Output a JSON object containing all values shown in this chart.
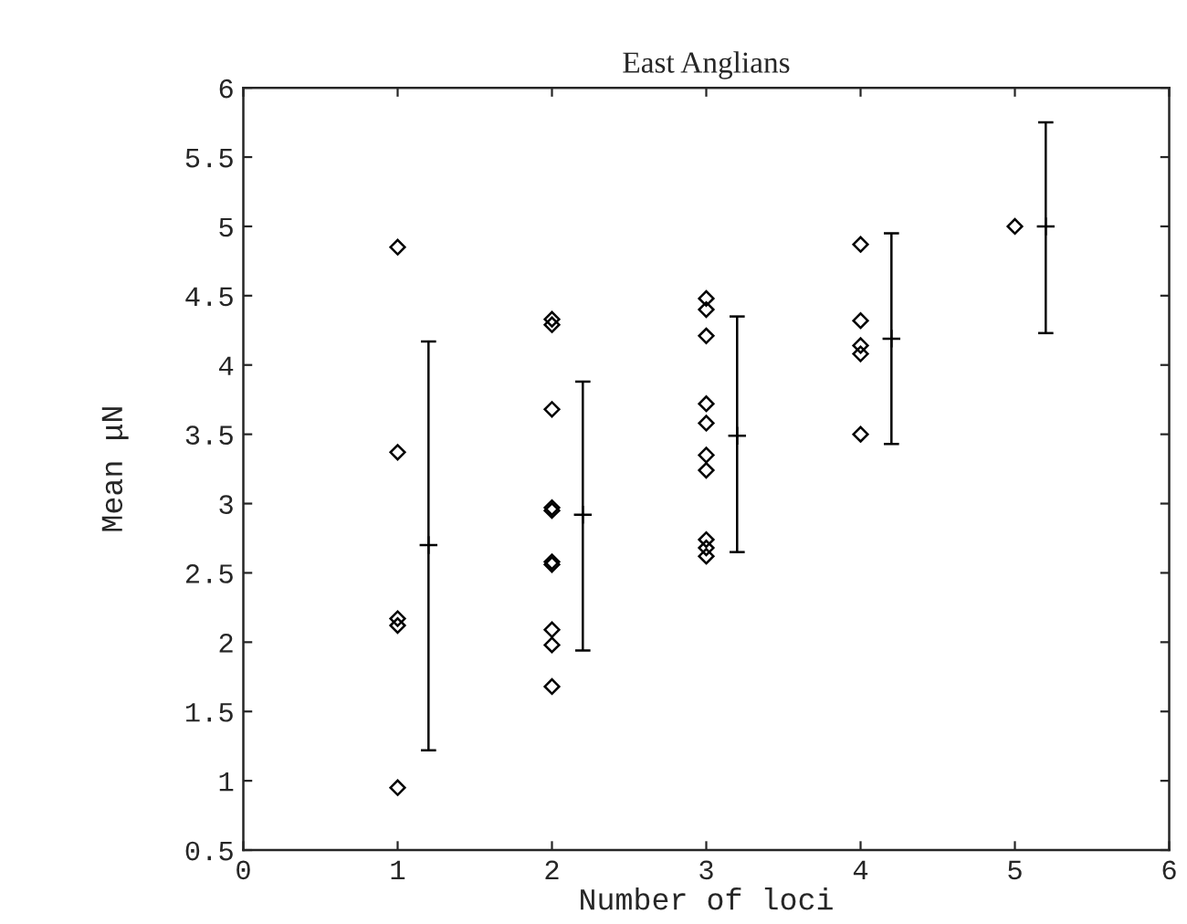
{
  "chart_data": {
    "type": "scatter",
    "title": "East Anglians",
    "xlabel": "Number of loci",
    "ylabel": "Mean μN",
    "xlim": [
      0,
      6
    ],
    "xticks": [
      0,
      1,
      2,
      3,
      4,
      5,
      6
    ],
    "ylim": [
      0.5,
      6
    ],
    "yticks": [
      0.5,
      1,
      1.5,
      2,
      2.5,
      3,
      3.5,
      4,
      4.5,
      5,
      5.5,
      6
    ],
    "grid": false,
    "legend": false,
    "series": [
      {
        "marker": "diamond",
        "color": "#000000",
        "x": [
          1,
          1,
          1,
          1,
          1,
          2,
          2,
          2,
          2,
          2,
          2,
          2,
          2,
          2,
          2,
          3,
          3,
          3,
          3,
          3,
          3,
          3,
          3,
          3,
          3,
          4,
          4,
          4,
          4,
          4,
          5
        ],
        "values": [
          4.85,
          3.37,
          2.17,
          2.12,
          0.95,
          4.33,
          4.29,
          3.68,
          2.97,
          2.95,
          2.58,
          2.56,
          2.09,
          1.98,
          1.68,
          4.48,
          4.4,
          4.21,
          3.72,
          3.58,
          3.35,
          3.24,
          2.74,
          2.68,
          2.62,
          4.87,
          4.32,
          4.14,
          4.08,
          3.5,
          5.0
        ]
      },
      {
        "marker": "cross",
        "color": "#000000",
        "x": [
          1.2,
          2.2,
          3.2,
          4.2,
          5.2
        ],
        "values": [
          2.7,
          2.92,
          3.49,
          4.19,
          5.0
        ],
        "errors": [
          [
            1.22,
            4.17
          ],
          [
            1.94,
            3.88
          ],
          [
            2.65,
            4.35
          ],
          [
            3.43,
            4.95
          ],
          [
            4.23,
            5.75
          ]
        ]
      }
    ]
  }
}
